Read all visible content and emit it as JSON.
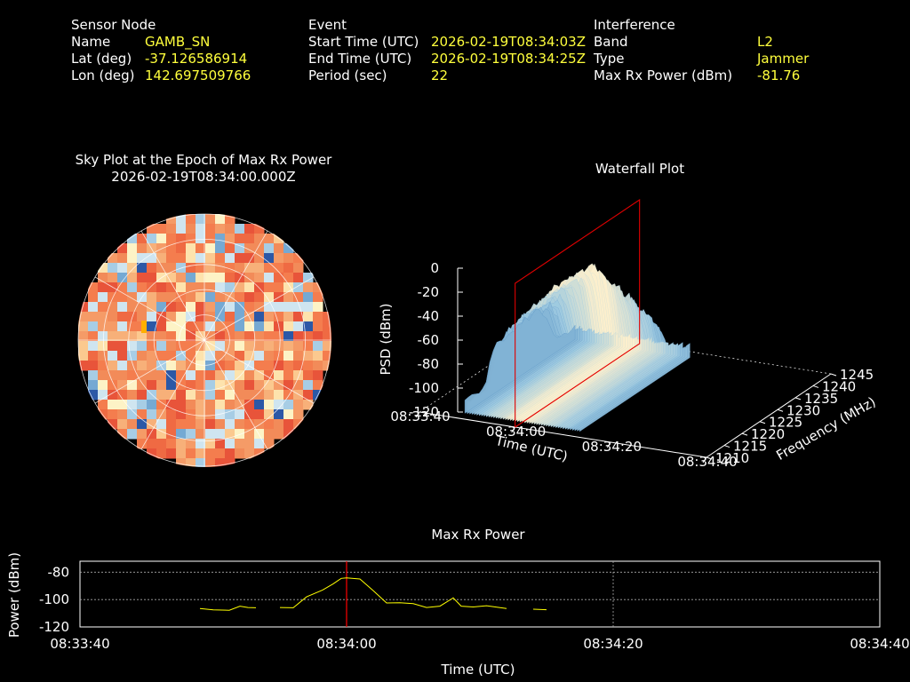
{
  "info": {
    "sensor": {
      "header": "Sensor Node",
      "rows": [
        {
          "label": "Name",
          "value": "GAMB_SN"
        },
        {
          "label": "Lat (deg)",
          "value": "-37.126586914"
        },
        {
          "label": "Lon (deg)",
          "value": "142.697509766"
        }
      ]
    },
    "event": {
      "header": "Event",
      "rows": [
        {
          "label": "Start Time (UTC)",
          "value": "2026-02-19T08:34:03Z"
        },
        {
          "label": "End Time (UTC)",
          "value": "2026-02-19T08:34:25Z"
        },
        {
          "label": "Period (sec)",
          "value": "22"
        }
      ]
    },
    "interference": {
      "header": "Interference",
      "rows": [
        {
          "label": "Band",
          "value": "L2"
        },
        {
          "label": "Type",
          "value": "Jammer"
        },
        {
          "label": "Max Rx Power (dBm)",
          "value": "-81.76"
        }
      ]
    }
  },
  "sky_plot": {
    "title": "Sky Plot at the Epoch of Max Rx Power",
    "subtitle": "2026-02-19T08:34:00.000Z"
  },
  "waterfall": {
    "title": "Waterfall Plot",
    "zlabel": "PSD (dBm)",
    "xlabel": "Time (UTC)",
    "ylabel": "Frequency (MHz)"
  },
  "colors": {
    "background": "#000000",
    "value_text": "#ffff3c",
    "trace": "#ffff00",
    "marker": "#ff0000",
    "sky_hot": "#f26b3a",
    "sky_cool": "#9ecae1"
  },
  "chart_data": [
    {
      "type": "line",
      "title": "Max Rx Power",
      "xlabel": "Time (UTC)",
      "ylabel": "Power (dBm)",
      "x_ticks": [
        "08:33:40",
        "08:34:00",
        "08:34:20",
        "08:34:40"
      ],
      "y_ticks": [
        -80,
        -100,
        -120
      ],
      "xlim_seconds": [
        0,
        60
      ],
      "ylim": [
        -120,
        -72
      ],
      "grid": true,
      "marker_time": "08:34:00",
      "segments": [
        [
          [
            9.0,
            -106.5
          ],
          [
            10.0,
            -107.5
          ],
          [
            11.2,
            -107.8
          ],
          [
            12.0,
            -104.8
          ],
          [
            12.6,
            -105.8
          ],
          [
            13.2,
            -106.0
          ]
        ],
        [
          [
            15.0,
            -105.8
          ],
          [
            16.0,
            -106.0
          ],
          [
            17.0,
            -98.0
          ],
          [
            18.2,
            -93.0
          ],
          [
            19.0,
            -88.5
          ],
          [
            19.6,
            -84.5
          ],
          [
            20.0,
            -84.2
          ],
          [
            21.0,
            -85.0
          ],
          [
            22.0,
            -93.5
          ],
          [
            23.0,
            -102.5
          ],
          [
            24.0,
            -102.3
          ],
          [
            25.0,
            -103.0
          ],
          [
            26.0,
            -105.8
          ],
          [
            27.0,
            -104.8
          ],
          [
            28.0,
            -98.8
          ],
          [
            28.6,
            -104.8
          ],
          [
            29.5,
            -105.4
          ],
          [
            30.5,
            -104.5
          ],
          [
            32.0,
            -106.5
          ]
        ],
        [
          [
            34.0,
            -107.0
          ],
          [
            35.0,
            -107.4
          ]
        ]
      ]
    },
    {
      "type": "area",
      "title": "Waterfall Plot",
      "xlabel": "Time (UTC)",
      "ylabel": "Frequency (MHz)",
      "zlabel": "PSD (dBm)",
      "x_ticks": [
        "08:33:40",
        "08:34:00",
        "08:34:20",
        "08:34:40"
      ],
      "y_ticks": [
        1210,
        1215,
        1220,
        1225,
        1230,
        1235,
        1240,
        1245
      ],
      "z_ticks": [
        0,
        -20,
        -40,
        -60,
        -80,
        -100,
        -120
      ],
      "zlim": [
        -120,
        0
      ],
      "ylim": [
        1210,
        1245
      ],
      "marker_time": "08:34:00",
      "psd_peak_dbm": -30,
      "psd_floor_dbm": -110
    },
    {
      "type": "heatmap",
      "title": "Sky Plot at the Epoch of Max Rx Power",
      "rings": 5,
      "spokes": 12
    }
  ]
}
